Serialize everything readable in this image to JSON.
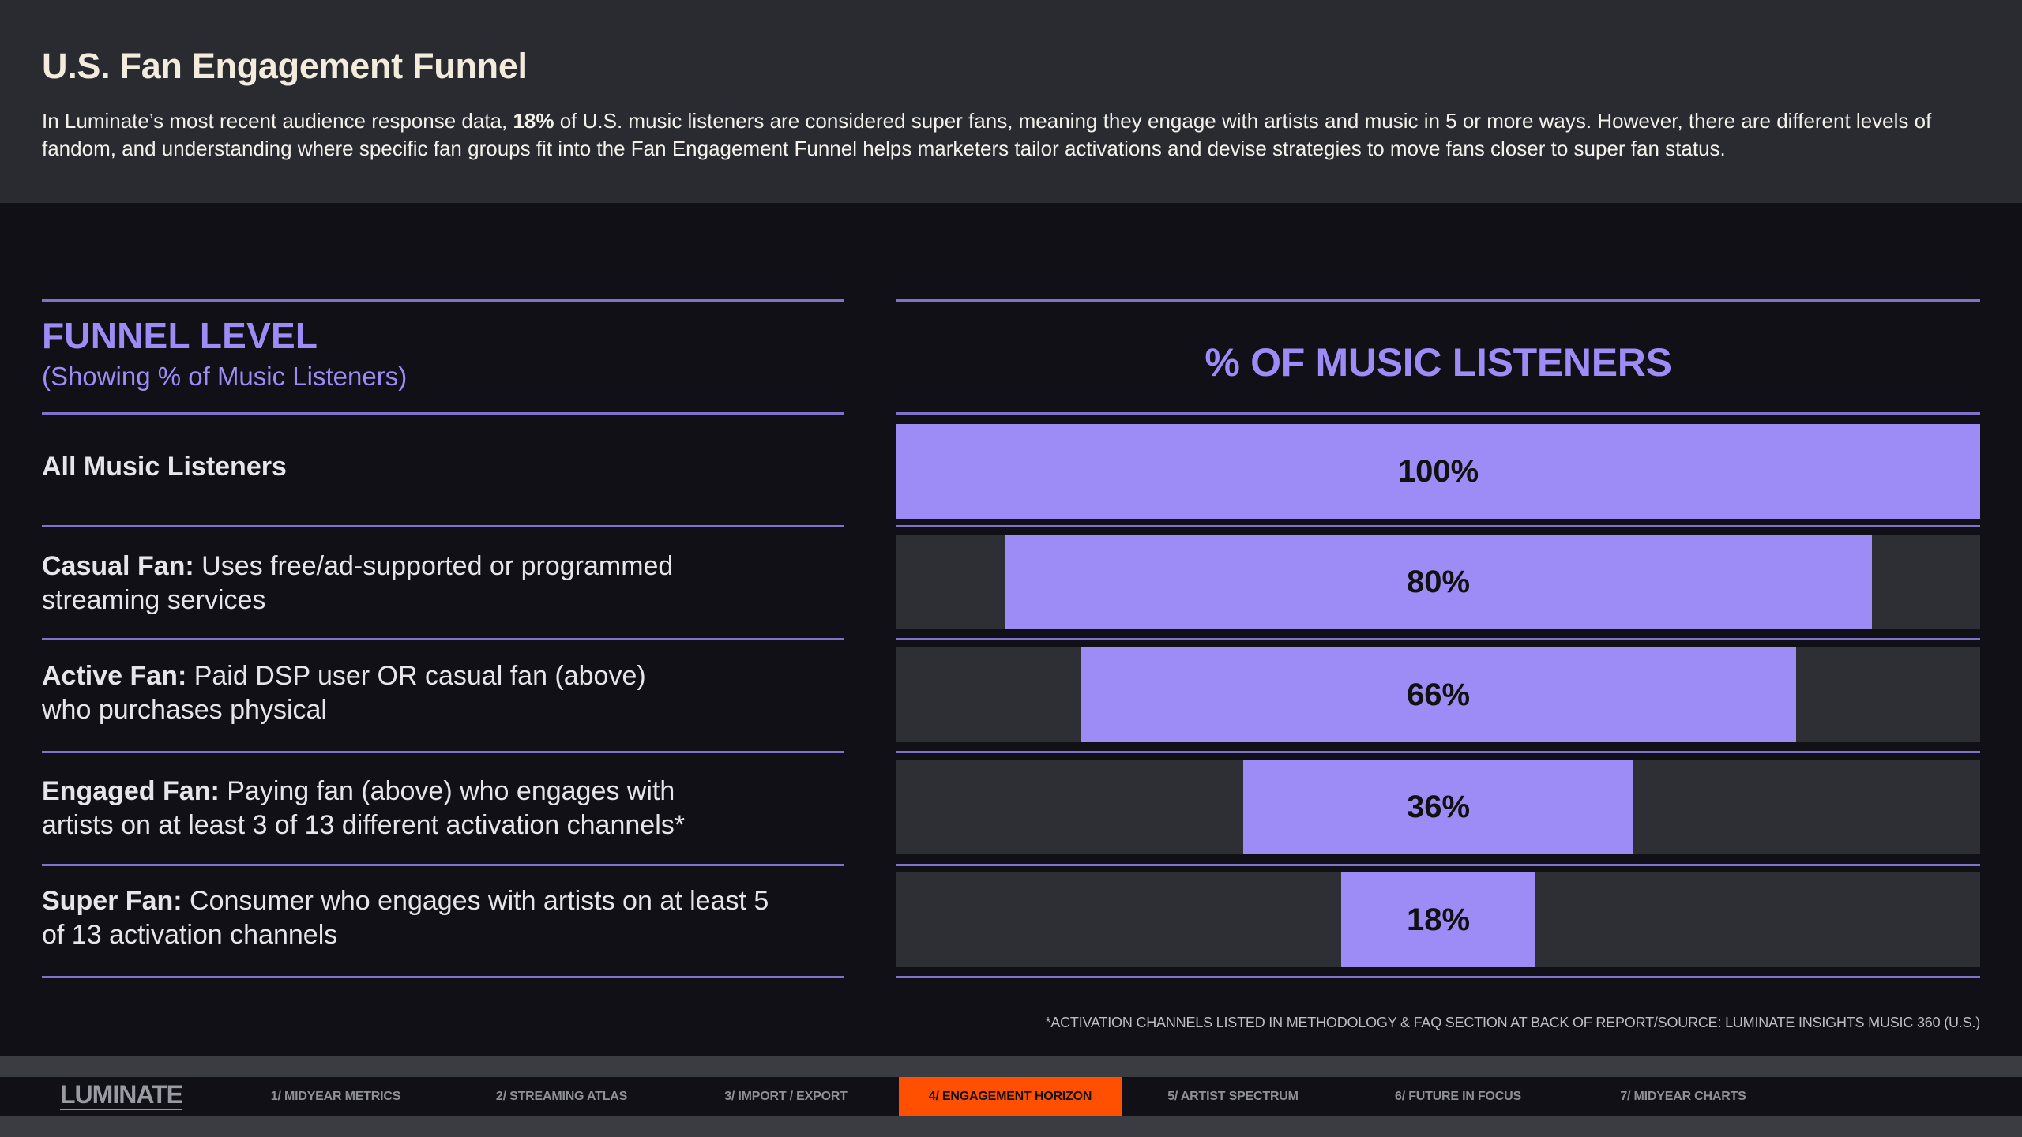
{
  "header": {
    "title": "U.S. Fan Engagement Funnel",
    "desc_part1": "In Luminate’s most recent audience response data, ",
    "desc_bold": "18%",
    "desc_part2": " of U.S. music listeners are considered super fans, meaning they engage with artists and music in 5 or more ways. However, there are different levels of fandom, and understanding where specific fan groups fit into the Fan Engagement Funnel helps marketers tailor activations and devise strategies to move fans closer to super fan status."
  },
  "funnel": {
    "title": "FUNNEL LEVEL",
    "subtitle": "(Showing % of Music Listeners)",
    "levels": [
      {
        "name": "All Music Listeners",
        "desc": ""
      },
      {
        "name": "Casual Fan:",
        "desc": " Uses free/ad-supported or programmed streaming services"
      },
      {
        "name": "Active Fan:",
        "desc": " Paid DSP user OR casual fan (above) who purchases physical"
      },
      {
        "name": "Engaged Fan:",
        "desc": " Paying fan (above) who engages with artists on at least 3 of 13 different activation channels*"
      },
      {
        "name": "Super Fan:",
        "desc": " Consumer who engages with artists on at least 5 of 13 activation channels"
      }
    ]
  },
  "chart_data": {
    "type": "bar",
    "title": "% OF MUSIC LISTENERS",
    "categories": [
      "All Music Listeners",
      "Casual Fan",
      "Active Fan",
      "Engaged Fan",
      "Super Fan"
    ],
    "values": [
      100,
      80,
      66,
      36,
      18
    ],
    "labels": [
      "100%",
      "80%",
      "66%",
      "36%",
      "18%"
    ],
    "ylim": [
      0,
      100
    ],
    "fill_color": "#9e8cf6",
    "track_color": "#2e2f35"
  },
  "footnote": "*ACTIVATION CHANNELS LISTED IN METHODOLOGY & FAQ SECTION AT BACK OF REPORT/SOURCE: LUMINATE INSIGHTS MUSIC 360 (U.S.)",
  "footer": {
    "logo": "LUMINATE",
    "tabs": [
      {
        "label": "1/ MIDYEAR METRICS",
        "active": false
      },
      {
        "label": "2/ STREAMING ATLAS",
        "active": false
      },
      {
        "label": "3/ IMPORT / EXPORT",
        "active": false
      },
      {
        "label": "4/ ENGAGEMENT HORIZON",
        "active": true
      },
      {
        "label": "5/ ARTIST SPECTRUM",
        "active": false
      },
      {
        "label": "6/ FUTURE IN FOCUS",
        "active": false
      },
      {
        "label": "7/ MIDYEAR CHARTS",
        "active": false
      }
    ],
    "accent": "#ff4f00"
  }
}
